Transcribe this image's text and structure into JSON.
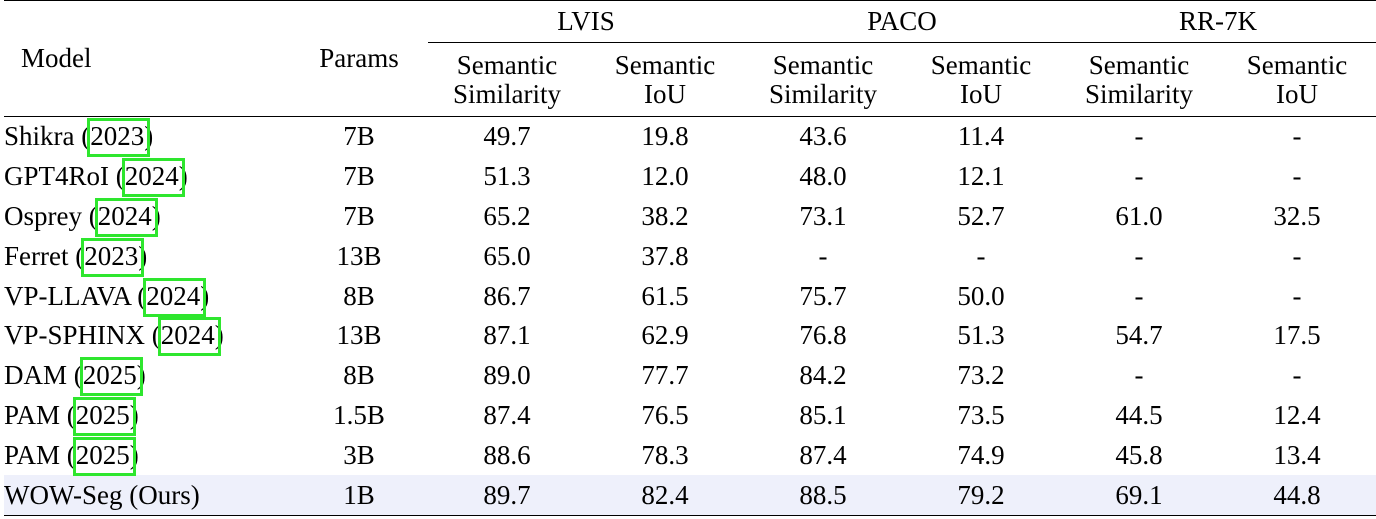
{
  "header": {
    "model": "Model",
    "params": "Params",
    "groups": [
      "LVIS",
      "PACO",
      "RR-7K"
    ],
    "sub_line1": [
      "Semantic",
      "Semantic"
    ],
    "sub_line2": [
      "Similarity",
      "IoU"
    ]
  },
  "rows": [
    {
      "name": "Shikra",
      "year": "2023",
      "params": "7B",
      "values": [
        "49.7",
        "19.8",
        "43.6",
        "11.4",
        "-",
        "-"
      ]
    },
    {
      "name": "GPT4RoI",
      "year": "2024",
      "params": "7B",
      "values": [
        "51.3",
        "12.0",
        "48.0",
        "12.1",
        "-",
        "-"
      ]
    },
    {
      "name": "Osprey",
      "year": "2024",
      "params": "7B",
      "values": [
        "65.2",
        "38.2",
        "73.1",
        "52.7",
        "61.0",
        "32.5"
      ]
    },
    {
      "name": "Ferret",
      "year": "2023",
      "params": "13B",
      "values": [
        "65.0",
        "37.8",
        "-",
        "-",
        "-",
        "-"
      ]
    },
    {
      "name": "VP-LLAVA",
      "year": "2024",
      "params": "8B",
      "values": [
        "86.7",
        "61.5",
        "75.7",
        "50.0",
        "-",
        "-"
      ]
    },
    {
      "name": "VP-SPHINX",
      "year": "2024",
      "params": "13B",
      "values": [
        "87.1",
        "62.9",
        "76.8",
        "51.3",
        "54.7",
        "17.5"
      ]
    },
    {
      "name": "DAM",
      "year": "2025",
      "params": "8B",
      "values": [
        "89.0",
        "77.7",
        "84.2",
        "73.2",
        "-",
        "-"
      ]
    },
    {
      "name": "PAM",
      "year": "2025",
      "params": "1.5B",
      "values": [
        "87.4",
        "76.5",
        "85.1",
        "73.5",
        "44.5",
        "12.4"
      ]
    },
    {
      "name": "PAM",
      "year": "2025",
      "params": "3B",
      "values": [
        "88.6",
        "78.3",
        "87.4",
        "74.9",
        "45.8",
        "13.4"
      ]
    }
  ],
  "ours": {
    "name": "WOW-Seg (Ours)",
    "params": "1B",
    "values": [
      "89.7",
      "82.4",
      "88.5",
      "79.2",
      "69.1",
      "44.8"
    ]
  },
  "colors": {
    "citation_box": "#2ee62e",
    "ours_highlight": "#eef0fb"
  }
}
